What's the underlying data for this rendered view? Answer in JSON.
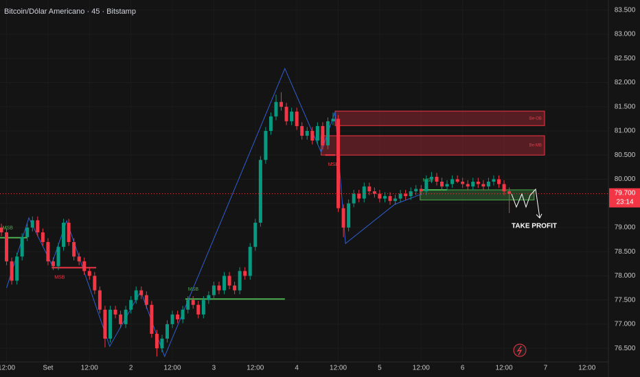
{
  "chart_data": {
    "type": "candlestick",
    "title": "Bitcoin/Dólar Americano · 45 · Bitstamp",
    "up_color": "#089981",
    "down_color": "#f23645",
    "grid": true,
    "ylim": [
      76190,
      83710
    ],
    "yticks": [
      {
        "value": 76500,
        "label": "76.500"
      },
      {
        "value": 77000,
        "label": "77.000"
      },
      {
        "value": 77500,
        "label": "77.500"
      },
      {
        "value": 78000,
        "label": "78.000"
      },
      {
        "value": 78500,
        "label": "78.500"
      },
      {
        "value": 79000,
        "label": "79.000"
      },
      {
        "value": 79500,
        "label": "79.500"
      },
      {
        "value": 80000,
        "label": "80.000"
      },
      {
        "value": 80500,
        "label": "80.500"
      },
      {
        "value": 81000,
        "label": "81.000"
      },
      {
        "value": 81500,
        "label": "81.500"
      },
      {
        "value": 82000,
        "label": "82.000"
      },
      {
        "value": 82500,
        "label": "82.500"
      },
      {
        "value": 83000,
        "label": "83.000"
      },
      {
        "value": 83500,
        "label": "83.500"
      }
    ],
    "categories": [
      null,
      "12:00",
      null,
      null,
      null,
      null,
      null,
      null,
      null,
      "Set",
      null,
      null,
      null,
      null,
      null,
      null,
      null,
      "12:00",
      null,
      null,
      null,
      null,
      null,
      null,
      null,
      "2",
      null,
      null,
      null,
      null,
      null,
      null,
      null,
      "12:00",
      null,
      null,
      null,
      null,
      null,
      null,
      null,
      "3",
      null,
      null,
      null,
      null,
      null,
      null,
      null,
      "12:00",
      null,
      null,
      null,
      null,
      null,
      null,
      null,
      "4",
      null,
      null,
      null,
      null,
      null,
      null,
      null,
      "12:00",
      null,
      null,
      null,
      null,
      null,
      null,
      null,
      "5",
      null,
      null,
      null,
      null,
      null,
      null,
      null,
      "12:00",
      null,
      null,
      null,
      null,
      null,
      null,
      null,
      "6",
      null,
      null,
      null,
      null,
      null,
      null,
      null,
      "12:00",
      null,
      null,
      null,
      null,
      null,
      null,
      null,
      "7",
      null,
      null,
      null,
      null,
      null,
      null,
      null,
      "12:00",
      null,
      null,
      null
    ],
    "candles": [
      [
        79000,
        79080,
        78820,
        78900
      ],
      [
        78900,
        78980,
        78220,
        78300
      ],
      [
        78300,
        78380,
        77820,
        77900
      ],
      [
        77900,
        78480,
        77820,
        78400
      ],
      [
        78400,
        78880,
        78320,
        78800
      ],
      [
        78800,
        79080,
        78720,
        79000
      ],
      [
        79000,
        79230,
        78920,
        79150
      ],
      [
        79150,
        79230,
        78820,
        78900
      ],
      [
        78900,
        78980,
        78620,
        78700
      ],
      [
        78700,
        78780,
        78220,
        78300
      ],
      [
        78300,
        78380,
        78120,
        78200
      ],
      [
        78200,
        78680,
        78120,
        78600
      ],
      [
        78600,
        79180,
        78520,
        79100
      ],
      [
        79100,
        79180,
        78620,
        78700
      ],
      [
        78700,
        78780,
        78320,
        78400
      ],
      [
        78400,
        78480,
        78220,
        78300
      ],
      [
        78300,
        78380,
        78020,
        78100
      ],
      [
        78100,
        78180,
        77920,
        78000
      ],
      [
        78000,
        78080,
        77620,
        77700
      ],
      [
        77700,
        77780,
        77220,
        77300
      ],
      [
        77300,
        77380,
        76520,
        76700
      ],
      [
        76700,
        77380,
        76620,
        77300
      ],
      [
        77300,
        77380,
        77120,
        77200
      ],
      [
        77200,
        77280,
        76920,
        77000
      ],
      [
        77000,
        77380,
        76920,
        77300
      ],
      [
        77300,
        77580,
        77220,
        77500
      ],
      [
        77500,
        77780,
        77420,
        77700
      ],
      [
        77700,
        77780,
        77520,
        77600
      ],
      [
        77600,
        77680,
        77320,
        77400
      ],
      [
        77400,
        77480,
        76720,
        76800
      ],
      [
        76800,
        76880,
        76330,
        76500
      ],
      [
        76500,
        76780,
        76420,
        76700
      ],
      [
        76700,
        77080,
        76620,
        77000
      ],
      [
        77000,
        77280,
        76920,
        77200
      ],
      [
        77200,
        77280,
        77020,
        77100
      ],
      [
        77100,
        77380,
        77020,
        77300
      ],
      [
        77300,
        77580,
        77220,
        77500
      ],
      [
        77500,
        77580,
        77320,
        77400
      ],
      [
        77400,
        77480,
        77120,
        77200
      ],
      [
        77200,
        77580,
        77120,
        77500
      ],
      [
        77500,
        77680,
        77420,
        77600
      ],
      [
        77600,
        77880,
        77520,
        77800
      ],
      [
        77800,
        77880,
        77620,
        77700
      ],
      [
        77700,
        78080,
        77620,
        78000
      ],
      [
        78000,
        78080,
        77720,
        77800
      ],
      [
        77800,
        77880,
        77620,
        77700
      ],
      [
        77700,
        78180,
        77620,
        78100
      ],
      [
        78100,
        78180,
        77920,
        78000
      ],
      [
        78000,
        78680,
        77920,
        78600
      ],
      [
        78600,
        79180,
        78520,
        79100
      ],
      [
        79100,
        80480,
        79020,
        80400
      ],
      [
        80400,
        81080,
        80320,
        81000
      ],
      [
        81000,
        81380,
        80920,
        81300
      ],
      [
        81300,
        81750,
        81220,
        81600
      ],
      [
        81600,
        81800,
        81420,
        81500
      ],
      [
        81500,
        81580,
        81120,
        81200
      ],
      [
        81200,
        81480,
        81120,
        81400
      ],
      [
        81400,
        81480,
        81020,
        81100
      ],
      [
        81100,
        81180,
        80820,
        80900
      ],
      [
        80900,
        81080,
        80820,
        81000
      ],
      [
        81000,
        81080,
        80720,
        80800
      ],
      [
        80800,
        81180,
        80720,
        81100
      ],
      [
        81100,
        81180,
        80620,
        80700
      ],
      [
        80700,
        81280,
        80620,
        81200
      ],
      [
        81200,
        81380,
        81120,
        81250
      ],
      [
        81250,
        81330,
        79320,
        79400
      ],
      [
        79400,
        79480,
        78800,
        79000
      ],
      [
        79000,
        79580,
        78920,
        79500
      ],
      [
        79500,
        79780,
        79420,
        79700
      ],
      [
        79700,
        79780,
        79520,
        79600
      ],
      [
        79600,
        79930,
        79520,
        79850
      ],
      [
        79850,
        79930,
        79670,
        79750
      ],
      [
        79750,
        79830,
        79620,
        79700
      ],
      [
        79700,
        79780,
        79520,
        79600
      ],
      [
        79600,
        79730,
        79520,
        79650
      ],
      [
        79650,
        79730,
        79470,
        79550
      ],
      [
        79550,
        79680,
        79470,
        79600
      ],
      [
        79600,
        79780,
        79520,
        79700
      ],
      [
        79700,
        79780,
        79570,
        79650
      ],
      [
        79650,
        79830,
        79570,
        79750
      ],
      [
        79750,
        79880,
        79670,
        79800
      ],
      [
        79800,
        79880,
        79670,
        79750
      ],
      [
        79750,
        80080,
        79670,
        80000
      ],
      [
        80000,
        80150,
        79920,
        80050
      ],
      [
        80050,
        80130,
        79870,
        79950
      ],
      [
        79950,
        80030,
        79770,
        79850
      ],
      [
        79850,
        79980,
        79770,
        79900
      ],
      [
        79900,
        80080,
        79820,
        80000
      ],
      [
        80000,
        80080,
        79920,
        79950
      ],
      [
        79950,
        80030,
        79820,
        79900
      ],
      [
        79900,
        79980,
        79770,
        79850
      ],
      [
        79850,
        80030,
        79770,
        79950
      ],
      [
        79950,
        80030,
        79820,
        79900
      ],
      [
        79900,
        79980,
        79770,
        79850
      ],
      [
        79850,
        80030,
        79770,
        79950
      ],
      [
        79950,
        80080,
        79870,
        80000
      ],
      [
        80000,
        80080,
        79820,
        79900
      ],
      [
        79900,
        79980,
        79670,
        79750
      ],
      [
        79750,
        79830,
        79300,
        79700
      ],
      null,
      null,
      null,
      null,
      null,
      null,
      null,
      null,
      null,
      null,
      null,
      null,
      null,
      null,
      null,
      null,
      null,
      null
    ],
    "last_price": {
      "value": 79700,
      "label": "79.700"
    },
    "countdown": "23:14",
    "zigzag": {
      "color": "#2f5fd0",
      "points": [
        [
          1,
          77750
        ],
        [
          5.3,
          79200
        ],
        [
          9.7,
          78240
        ],
        [
          12.6,
          79140
        ],
        [
          20.9,
          76540
        ],
        [
          26.9,
          77680
        ],
        [
          31.5,
          76330
        ],
        [
          54.7,
          82290
        ],
        [
          61.7,
          80560
        ],
        [
          64.4,
          81400
        ],
        [
          66.4,
          78670
        ],
        [
          75.9,
          79480
        ],
        [
          81,
          79690
        ]
      ]
    },
    "zones": [
      {
        "label": "Be-OB",
        "top": 81410,
        "bottom": 81110,
        "start": 64.4,
        "end": 104.8,
        "color": "#f23645"
      },
      {
        "label": "Be-MB",
        "top": 80900,
        "bottom": 80500,
        "start": 61.7,
        "end": 104.8,
        "color": "#f23645"
      },
      {
        "label": null,
        "top": 79780,
        "bottom": 79570,
        "start": 80.8,
        "end": 102.8,
        "color": "#4caf50"
      }
    ],
    "levels": [
      {
        "label": "MSB",
        "price": 78790,
        "start": -0.3,
        "end": 5,
        "color": "#4caf50"
      },
      {
        "label": "MSB",
        "price": 78170,
        "start": 9.7,
        "end": 18.3,
        "color": "#f23645"
      },
      {
        "label": "MSB",
        "price": 77520,
        "start": 35.5,
        "end": 54.7,
        "color": "#4caf50"
      },
      {
        "label": "MSB",
        "price": 80500,
        "start": 62.5,
        "end": 64.4,
        "color": "#f23645"
      },
      {
        "label": "MSB",
        "price": 79780,
        "start": 80.8,
        "end": 86,
        "color": "#4caf50"
      }
    ],
    "take_profit": "TAKE PROFIT"
  }
}
